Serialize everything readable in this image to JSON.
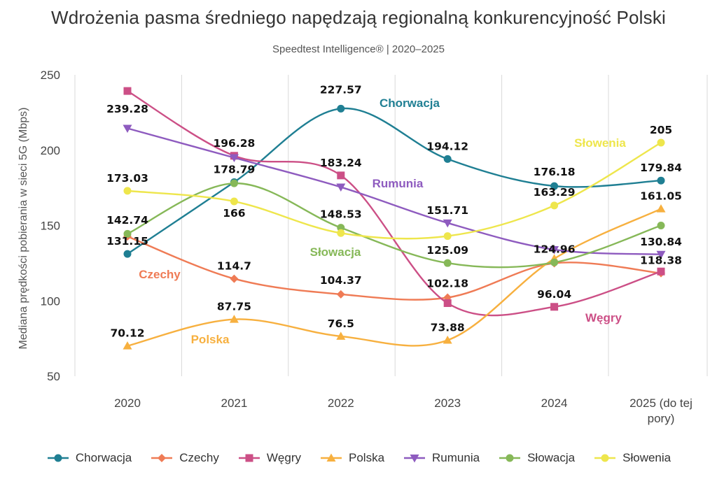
{
  "chart_data": {
    "type": "line",
    "title": "Wdrożenia pasma średniego napędzają regionalną konkurencyjność Polski",
    "subtitle": "Speedtest Intelligence® | 2020–2025",
    "xlabel": "",
    "ylabel": "Mediana prędkości pobierania w sieci 5G (Mbps)",
    "categories": [
      "2020",
      "2021",
      "2022",
      "2023",
      "2024",
      "2025 (do tej pory)"
    ],
    "ylim": [
      50,
      250
    ],
    "yticks": [
      "50",
      "100",
      "150",
      "200",
      "250"
    ],
    "grid": "vertical",
    "legend_position": "bottom",
    "series": [
      {
        "name": "Chorwacja",
        "color": "#1f7f93",
        "marker": "circle",
        "values": [
          131.15,
          178.79,
          227.57,
          194.12,
          176.18,
          179.84
        ],
        "labels": [
          "131.15",
          "178.79",
          "227.57",
          "194.12",
          "176.18",
          "179.84"
        ],
        "inline_label": "Chorwacja"
      },
      {
        "name": "Czechy",
        "color": "#ef7b55",
        "marker": "diamond",
        "values": [
          142.74,
          114.7,
          104.37,
          102.18,
          124.96,
          118.38
        ],
        "labels": [
          "142.74",
          "114.7",
          "104.37",
          "102.18",
          "124.96",
          "118.38"
        ],
        "inline_label": "Czechy"
      },
      {
        "name": "Węgry",
        "color": "#cc4f86",
        "marker": "square",
        "values": [
          239.28,
          196.28,
          183.24,
          98.5,
          96.04,
          119.5
        ],
        "labels": [
          "239.28",
          "196.28",
          "183.24",
          "",
          "96.04",
          ""
        ],
        "inline_label": "Węgry"
      },
      {
        "name": "Polska",
        "color": "#f7b03f",
        "marker": "triangle-up",
        "values": [
          70.12,
          87.75,
          76.5,
          73.88,
          128.0,
          161.05
        ],
        "labels": [
          "70.12",
          "87.75",
          "76.5",
          "73.88",
          "",
          "161.05"
        ],
        "inline_label": "Polska"
      },
      {
        "name": "Rumunia",
        "color": "#8e5bbf",
        "marker": "triangle-down",
        "values": [
          214.5,
          195.0,
          175.5,
          151.71,
          134.0,
          130.84
        ],
        "labels": [
          "",
          "",
          "",
          "151.71",
          "",
          "130.84"
        ],
        "inline_label": "Rumunia"
      },
      {
        "name": "Słowacja",
        "color": "#86b858",
        "marker": "circle",
        "values": [
          144.5,
          178.0,
          148.53,
          125.09,
          125.5,
          150.0
        ],
        "labels": [
          "",
          "",
          "148.53",
          "125.09",
          "",
          ""
        ],
        "inline_label": "Słowacja"
      },
      {
        "name": "Słowenia",
        "color": "#eee64c",
        "marker": "circle",
        "values": [
          173.03,
          166.0,
          145.0,
          143.0,
          163.29,
          205.0
        ],
        "labels": [
          "173.03",
          "166",
          "",
          "",
          "163.29",
          "205"
        ],
        "inline_label": "Słowenia"
      }
    ]
  }
}
